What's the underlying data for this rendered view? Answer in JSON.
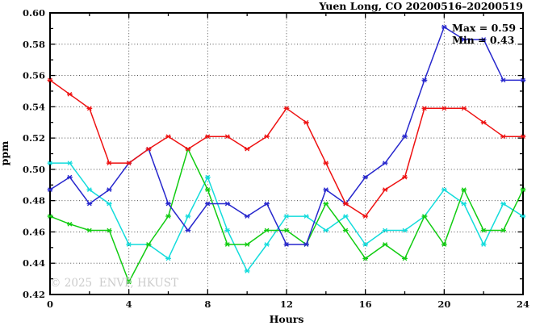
{
  "figure": {
    "title": "Yuen Long, CO 20200516–20200519",
    "annotation": {
      "line1": "Max = 0.59",
      "line2": "Min = 0.43"
    },
    "watermark": "© 2025  ENVF, HKUST"
  },
  "chart_data": {
    "type": "line",
    "title": "Yuen Long, CO 20200516–20200519",
    "xlabel": "Hours",
    "ylabel": "ppm",
    "xlim": [
      0,
      24
    ],
    "ylim": [
      0.42,
      0.6
    ],
    "grid": true,
    "legend": "none",
    "annotations": [
      "Max = 0.59",
      "Min = 0.43"
    ],
    "x_tick_values": [
      0,
      4,
      8,
      12,
      16,
      20,
      24
    ],
    "x_tick_labels": [
      "0",
      "4",
      "8",
      "12",
      "16",
      "20",
      "24"
    ],
    "x_minor_tick_values": [
      2,
      6,
      10,
      14,
      18,
      22
    ],
    "y_tick_values": [
      0.42,
      0.44,
      0.46,
      0.48,
      0.5,
      0.52,
      0.54,
      0.56,
      0.58,
      0.6
    ],
    "y_tick_labels": [
      "0.42",
      "0.44",
      "0.46",
      "0.48",
      "0.50",
      "0.52",
      "0.54",
      "0.56",
      "0.58",
      "0.60"
    ],
    "y_minor_tick_values": [
      0.43,
      0.45,
      0.47,
      0.49,
      0.51,
      0.53,
      0.55,
      0.57,
      0.59
    ],
    "x": [
      0,
      1,
      2,
      3,
      4,
      5,
      6,
      7,
      8,
      9,
      10,
      11,
      12,
      13,
      14,
      15,
      16,
      17,
      18,
      19,
      20,
      21,
      22,
      23,
      24
    ],
    "series": [
      {
        "name": "red-line",
        "color": "#ee1111",
        "values": [
          0.557,
          0.548,
          0.539,
          0.504,
          0.504,
          0.513,
          0.521,
          0.513,
          0.521,
          0.521,
          0.513,
          0.521,
          0.539,
          0.53,
          0.504,
          0.478,
          0.47,
          0.487,
          0.495,
          0.539,
          0.539,
          0.539,
          0.53,
          0.521,
          0.521
        ]
      },
      {
        "name": "blue-line",
        "color": "#2727cd",
        "values": [
          0.487,
          0.495,
          0.478,
          0.487,
          0.504,
          0.513,
          0.478,
          0.461,
          0.478,
          0.478,
          0.47,
          0.478,
          0.452,
          0.452,
          0.487,
          0.478,
          0.495,
          0.504,
          0.521,
          0.557,
          0.591,
          0.583,
          0.583,
          0.557,
          0.557
        ]
      },
      {
        "name": "green-line",
        "color": "#11cc11",
        "values": [
          0.47,
          0.465,
          0.461,
          0.461,
          0.428,
          0.452,
          0.47,
          0.513,
          0.487,
          0.452,
          0.452,
          0.461,
          0.461,
          0.452,
          0.478,
          0.461,
          0.443,
          0.452,
          0.443,
          0.47,
          0.452,
          0.487,
          0.461,
          0.461,
          0.487
        ]
      },
      {
        "name": "cyan-line",
        "color": "#14dcdc",
        "values": [
          0.504,
          0.504,
          0.487,
          0.478,
          0.452,
          0.452,
          0.443,
          0.47,
          0.495,
          0.461,
          0.435,
          0.452,
          0.47,
          0.47,
          0.461,
          0.47,
          0.452,
          0.461,
          0.461,
          0.47,
          0.487,
          0.478,
          0.452,
          0.478,
          0.47
        ]
      }
    ]
  }
}
